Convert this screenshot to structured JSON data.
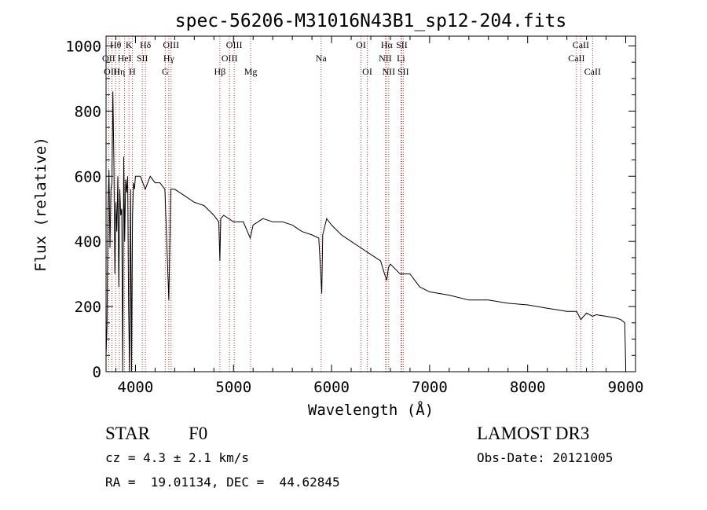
{
  "chart_data": {
    "type": "line",
    "title": "spec-56206-M31016N43B1_sp12-204.fits",
    "xlabel": "Wavelength (Å)",
    "ylabel": "Flux (relative)",
    "xlim": [
      3700,
      9100
    ],
    "ylim": [
      0,
      1030
    ],
    "x_ticks": [
      4000,
      5000,
      6000,
      7000,
      8000,
      9000
    ],
    "x_tick_labels": [
      "4000",
      "5000",
      "6000",
      "7000",
      "8000",
      "9000"
    ],
    "y_ticks": [
      0,
      200,
      400,
      600,
      800,
      1000
    ],
    "y_tick_labels": [
      "0",
      "200",
      "400",
      "600",
      "800",
      "1000"
    ],
    "grid": false,
    "series": [
      {
        "name": "flux",
        "x": [
          3700,
          3710,
          3720,
          3730,
          3740,
          3750,
          3760,
          3770,
          3780,
          3790,
          3800,
          3810,
          3820,
          3830,
          3840,
          3850,
          3860,
          3870,
          3880,
          3890,
          3900,
          3910,
          3920,
          3930,
          3940,
          3950,
          3960,
          3970,
          3980,
          3990,
          4000,
          4050,
          4100,
          4150,
          4200,
          4250,
          4300,
          4340,
          4360,
          4400,
          4500,
          4600,
          4700,
          4800,
          4850,
          4861,
          4870,
          4900,
          5000,
          5100,
          5170,
          5200,
          5300,
          5400,
          5500,
          5600,
          5700,
          5800,
          5870,
          5890,
          5900,
          5910,
          5950,
          6000,
          6100,
          6200,
          6300,
          6400,
          6500,
          6540,
          6563,
          6580,
          6600,
          6700,
          6800,
          6900,
          7000,
          7200,
          7400,
          7600,
          7800,
          8000,
          8200,
          8400,
          8500,
          8542,
          8600,
          8662,
          8700,
          8800,
          8900,
          8950,
          8990,
          9000
        ],
        "y": [
          50,
          140,
          500,
          620,
          380,
          560,
          580,
          860,
          640,
          300,
          520,
          430,
          600,
          260,
          560,
          480,
          500,
          0,
          660,
          400,
          590,
          550,
          600,
          200,
          0,
          560,
          0,
          480,
          580,
          560,
          600,
          600,
          560,
          600,
          580,
          580,
          560,
          220,
          560,
          560,
          540,
          520,
          510,
          480,
          460,
          340,
          470,
          480,
          460,
          460,
          410,
          450,
          470,
          460,
          460,
          450,
          430,
          420,
          410,
          300,
          240,
          420,
          470,
          450,
          420,
          400,
          380,
          360,
          340,
          300,
          280,
          320,
          330,
          300,
          300,
          260,
          245,
          235,
          220,
          220,
          210,
          205,
          195,
          185,
          185,
          160,
          180,
          170,
          175,
          170,
          165,
          160,
          150,
          20
        ]
      }
    ],
    "spectral_lines": [
      {
        "label": "Hθ",
        "wavelength": 3798,
        "row": 1
      },
      {
        "label": "OII",
        "wavelength": 3727,
        "row": 2
      },
      {
        "label": "OIII",
        "wavelength": 3760,
        "row": 3
      },
      {
        "label": "Hη",
        "wavelength": 3835,
        "row": 3
      },
      {
        "label": "HeI",
        "wavelength": 3889,
        "row": 2
      },
      {
        "label": "K",
        "wavelength": 3934,
        "row": 1
      },
      {
        "label": "H",
        "wavelength": 3968,
        "row": 3
      },
      {
        "label": "SII",
        "wavelength": 4070,
        "row": 2
      },
      {
        "label": "Hδ",
        "wavelength": 4102,
        "row": 1
      },
      {
        "label": "G",
        "wavelength": 4304,
        "row": 3
      },
      {
        "label": "Hγ",
        "wavelength": 4340,
        "row": 2
      },
      {
        "label": "OIII",
        "wavelength": 4363,
        "row": 1
      },
      {
        "label": "Hβ",
        "wavelength": 4861,
        "row": 3
      },
      {
        "label": "OIII",
        "wavelength": 4959,
        "row": 2
      },
      {
        "label": "OIII",
        "wavelength": 5007,
        "row": 1
      },
      {
        "label": "Mg",
        "wavelength": 5175,
        "row": 3
      },
      {
        "label": "Na",
        "wavelength": 5893,
        "row": 2
      },
      {
        "label": "OI",
        "wavelength": 6300,
        "row": 1
      },
      {
        "label": "OI",
        "wavelength": 6364,
        "row": 3
      },
      {
        "label": "NII",
        "wavelength": 6548,
        "row": 2
      },
      {
        "label": "Hα",
        "wavelength": 6563,
        "row": 1
      },
      {
        "label": "NII",
        "wavelength": 6583,
        "row": 3
      },
      {
        "label": "Li",
        "wavelength": 6708,
        "row": 2
      },
      {
        "label": "SII",
        "wavelength": 6716,
        "row": 1
      },
      {
        "label": "SII",
        "wavelength": 6731,
        "row": 3
      },
      {
        "label": "CaII",
        "wavelength": 8498,
        "row": 2
      },
      {
        "label": "CaII",
        "wavelength": 8542,
        "row": 1
      },
      {
        "label": "CaII",
        "wavelength": 8662,
        "row": 3
      }
    ],
    "colors": {
      "spectrum": "#000000",
      "lines": "#c0392b",
      "axes": "#000000"
    }
  },
  "info": {
    "object_type": "STAR",
    "subclass": "F0",
    "survey": "LAMOST DR3",
    "cz": "cz = 4.3 ± 2.1 km/s",
    "obs_date": "Obs-Date: 20121005",
    "coords": "RA =  19.01134, DEC =  44.62845"
  }
}
